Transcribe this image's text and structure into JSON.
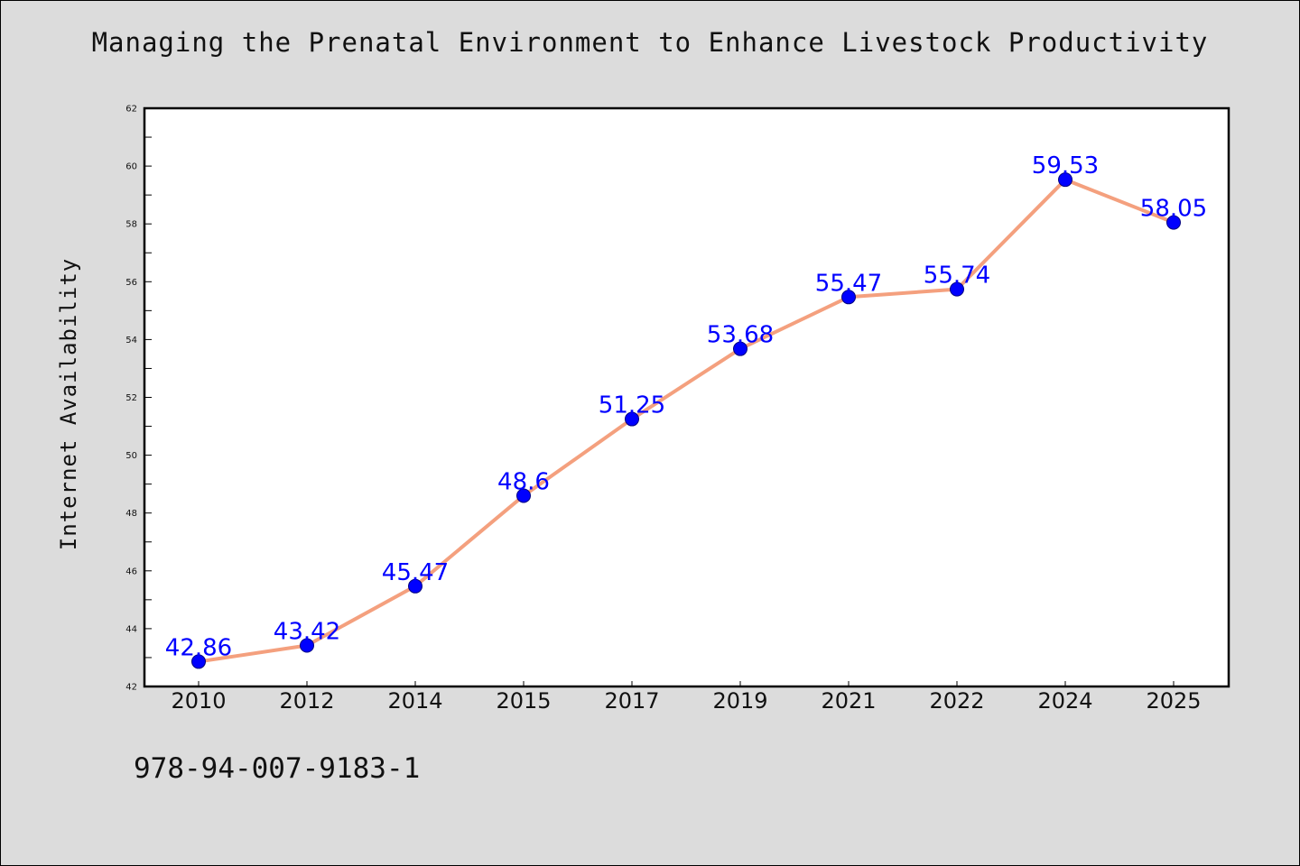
{
  "chart_data": {
    "type": "line",
    "title": "Managing the Prenatal Environment to Enhance Livestock Productivity",
    "xlabel": "",
    "ylabel": "Internet Availability",
    "categories": [
      "2010",
      "2012",
      "2014",
      "2015",
      "2017",
      "2019",
      "2021",
      "2022",
      "2024",
      "2025"
    ],
    "series": [
      {
        "values": [
          42.86,
          43.42,
          45.47,
          48.6,
          51.25,
          53.68,
          55.47,
          55.74,
          59.53,
          58.05
        ],
        "data_labels": [
          "42.86",
          "43.42",
          "45.47",
          "48.6",
          "51.25",
          "53.68",
          "55.47",
          "55.74",
          "59.53",
          "58.05"
        ]
      }
    ],
    "ylim": [
      42,
      62
    ],
    "yticks": [
      "42",
      "44",
      "46",
      "48",
      "50",
      "52",
      "54",
      "56",
      "58",
      "60",
      "62"
    ],
    "grid": false,
    "colors": {
      "line": "#f4a07e",
      "marker": "#0000ff",
      "marker_edge": "#000080",
      "data_label": "#0000ff",
      "background": "#dcdcdc",
      "plot_background": "#ffffff"
    }
  },
  "footer_text": "978-94-007-9183-1"
}
